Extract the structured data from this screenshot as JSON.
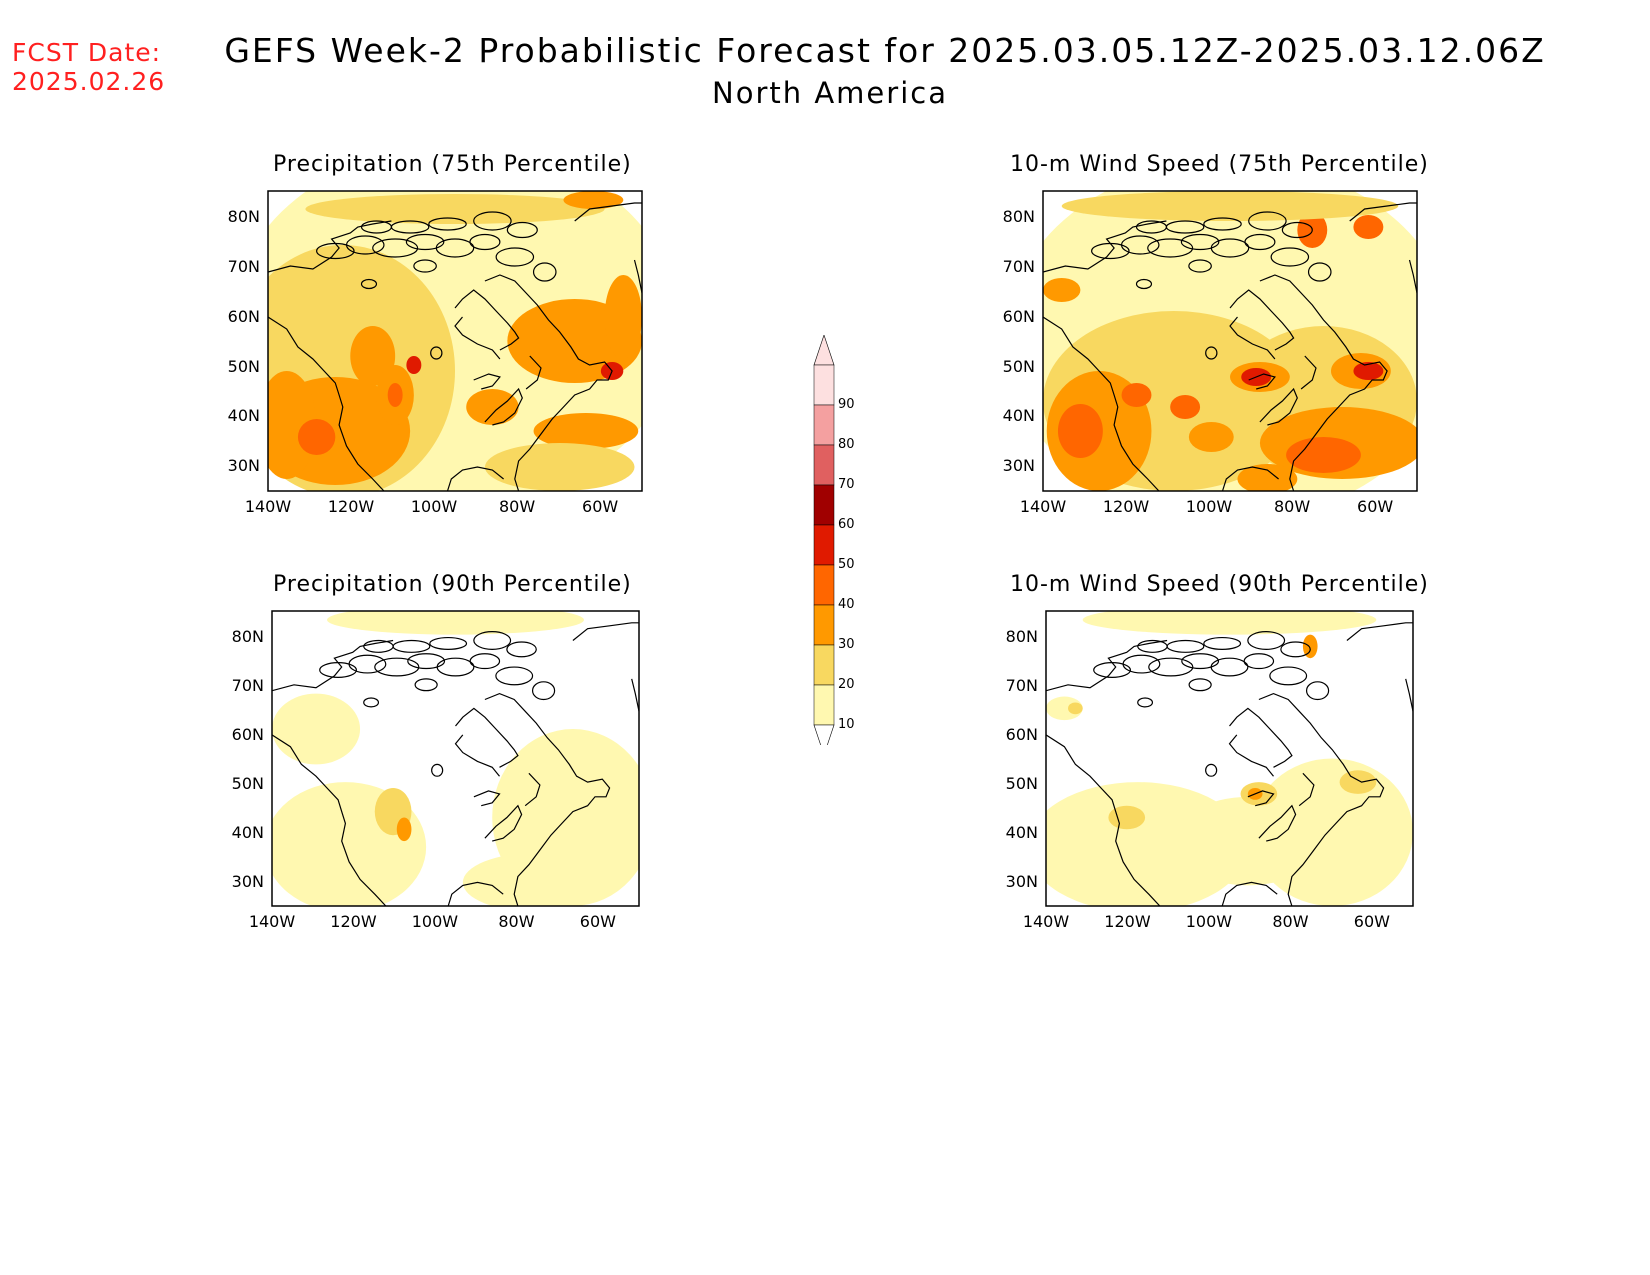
{
  "fcst_label": "FCST Date:",
  "fcst_date": "2025.02.26",
  "title": "GEFS Week-2 Probabilistic Forecast for 2025.03.05.12Z-2025.03.12.06Z",
  "subtitle": "North America",
  "panels": [
    {
      "title": "Precipitation (75th Percentile)"
    },
    {
      "title": "10-m Wind Speed (75th Percentile)"
    },
    {
      "title": "Precipitation (90th Percentile)"
    },
    {
      "title": "10-m Wind Speed (90th Percentile)"
    }
  ],
  "lat_labels": [
    "80N",
    "70N",
    "60N",
    "50N",
    "40N",
    "30N"
  ],
  "lon_labels": [
    "140W",
    "120W",
    "100W",
    "80W",
    "60W"
  ],
  "colorbar": {
    "labels": [
      "90",
      "80",
      "70",
      "60",
      "50",
      "40",
      "30",
      "20",
      "10"
    ],
    "colors": [
      "#fde0e0",
      "#f4a0a0",
      "#e06060",
      "#a00000",
      "#e01a00",
      "#ff6600",
      "#ff9900",
      "#f8d860",
      "#fff8b0"
    ]
  },
  "palette": {
    "c10": "#fff8b0",
    "c20": "#f8d860",
    "c30": "#ff9900",
    "c40": "#ff6600",
    "c50": "#e01a00",
    "c60": "#a00000",
    "title_red": "#ff2020"
  }
}
